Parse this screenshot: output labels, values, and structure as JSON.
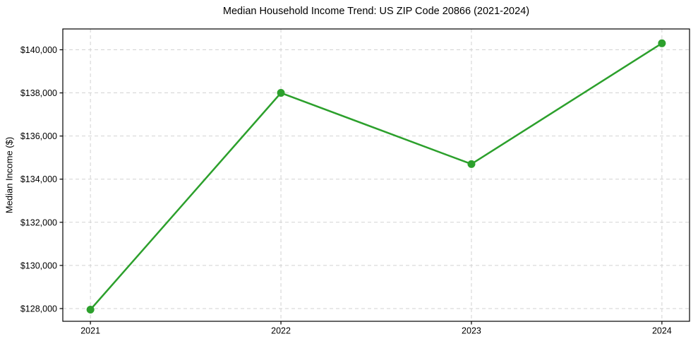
{
  "chart_data": {
    "type": "line",
    "title": "Median Household Income Trend: US ZIP Code 20866 (2021-2024)",
    "xlabel": "",
    "ylabel": "Median Income ($)",
    "x": [
      2021,
      2022,
      2023,
      2024
    ],
    "values": [
      127950,
      138000,
      134700,
      140300
    ],
    "x_ticks": [
      {
        "value": 2021,
        "label": "2021"
      },
      {
        "value": 2022,
        "label": "2022"
      },
      {
        "value": 2023,
        "label": "2023"
      },
      {
        "value": 2024,
        "label": "2024"
      }
    ],
    "y_ticks": [
      {
        "value": 128000,
        "label": "$128,000"
      },
      {
        "value": 130000,
        "label": "$130,000"
      },
      {
        "value": 132000,
        "label": "$132,000"
      },
      {
        "value": 134000,
        "label": "$134,000"
      },
      {
        "value": 136000,
        "label": "$136,000"
      },
      {
        "value": 138000,
        "label": "$138,000"
      },
      {
        "value": 140000,
        "label": "$140,000"
      }
    ],
    "xlim": [
      2020.855,
      2024.145
    ],
    "ylim": [
      127410,
      140965
    ],
    "grid": true,
    "grid_style": "dashed",
    "legend": false,
    "colors": {
      "line": "#2ca02c",
      "marker": "#2ca02c",
      "grid": "#d2d2d2",
      "spine": "#000000",
      "background": "#ffffff"
    },
    "line_width": 2.5,
    "marker_radius": 5.5
  }
}
